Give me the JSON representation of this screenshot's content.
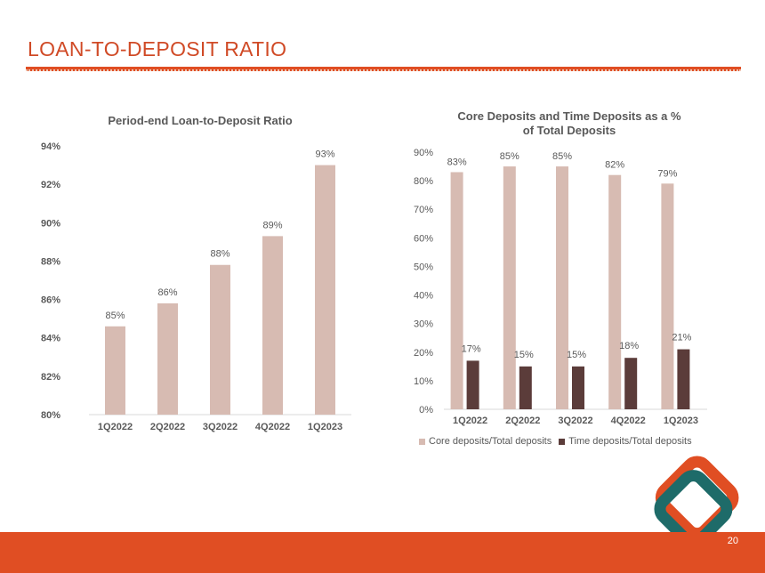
{
  "slide": {
    "title": "LOAN-TO-DEPOSIT RATIO",
    "page_number": "20",
    "colors": {
      "accent": "#E04E23",
      "title": "#D04A26",
      "teal": "#1E6B69"
    }
  },
  "chart_data": [
    {
      "type": "bar",
      "title": "Period-end Loan-to-Deposit Ratio",
      "categories": [
        "1Q2022",
        "2Q2022",
        "3Q2022",
        "4Q2022",
        "1Q2023"
      ],
      "values": [
        84.6,
        85.8,
        87.8,
        89.3,
        93.0
      ],
      "data_labels": [
        "85%",
        "86%",
        "88%",
        "89%",
        "93%"
      ],
      "ylim": [
        80,
        94
      ],
      "yticks": [
        80,
        82,
        84,
        86,
        88,
        90,
        92,
        94
      ],
      "ytick_labels": [
        "80%",
        "82%",
        "84%",
        "86%",
        "88%",
        "90%",
        "92%",
        "94%"
      ],
      "xlabel": "",
      "ylabel": "",
      "color": "#D7BBB2"
    },
    {
      "type": "bar",
      "title": "Core Deposits and Time Deposits as a % of Total Deposits",
      "title_lines": [
        "Core Deposits and Time Deposits as a %",
        "of Total Deposits"
      ],
      "categories": [
        "1Q2022",
        "2Q2022",
        "3Q2022",
        "4Q2022",
        "1Q2023"
      ],
      "series": [
        {
          "name": "Core deposits/Total deposits",
          "values": [
            83,
            85,
            85,
            82,
            79
          ],
          "labels": [
            "83%",
            "85%",
            "85%",
            "82%",
            "79%"
          ],
          "color": "#D7BBB2"
        },
        {
          "name": "Time deposits/Total deposits",
          "values": [
            17,
            15,
            15,
            18,
            21
          ],
          "labels": [
            "17%",
            "15%",
            "15%",
            "18%",
            "21%"
          ],
          "color": "#5B3C3A"
        }
      ],
      "ylim": [
        0,
        90
      ],
      "yticks": [
        0,
        10,
        20,
        30,
        40,
        50,
        60,
        70,
        80,
        90
      ],
      "ytick_labels": [
        "0%",
        "10%",
        "20%",
        "30%",
        "40%",
        "50%",
        "60%",
        "70%",
        "80%",
        "90%"
      ],
      "legend_position": "bottom",
      "xlabel": "",
      "ylabel": ""
    }
  ]
}
